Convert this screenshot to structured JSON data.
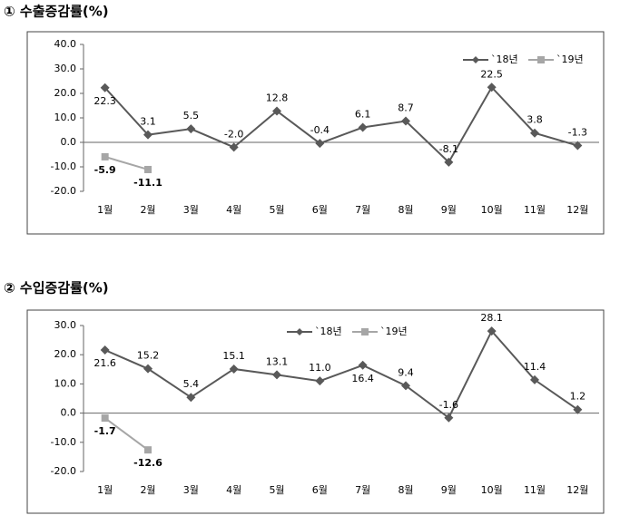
{
  "chart_data": [
    {
      "type": "line",
      "title": "① 수출증감률(%)",
      "categories": [
        "1월",
        "2월",
        "3월",
        "4월",
        "5월",
        "6월",
        "7월",
        "8월",
        "9월",
        "10월",
        "11월",
        "12월"
      ],
      "series": [
        {
          "name": "`18년",
          "color": "#595959",
          "marker": "diamond",
          "values": [
            22.3,
            3.1,
            5.5,
            -2.0,
            12.8,
            -0.4,
            6.1,
            8.7,
            -8.1,
            22.5,
            3.8,
            -1.3
          ],
          "value_labels": [
            "22.3",
            "3.1",
            "5.5",
            "-2.0",
            "12.8",
            "-0.4",
            "6.1",
            "8.7",
            "-8.1",
            "22.5",
            "3.8",
            "-1.3"
          ]
        },
        {
          "name": "`19년",
          "color": "#a6a6a6",
          "marker": "square",
          "values": [
            -5.9,
            -11.1,
            null,
            null,
            null,
            null,
            null,
            null,
            null,
            null,
            null,
            null
          ],
          "value_labels": [
            "-5.9",
            "-11.1",
            null,
            null,
            null,
            null,
            null,
            null,
            null,
            null,
            null,
            null
          ]
        }
      ],
      "ylim": [
        -20,
        40
      ],
      "yticks": [
        {
          "value": -20,
          "label": "-20.0"
        },
        {
          "value": -10,
          "label": "-10.0"
        },
        {
          "value": 0,
          "label": "0.0"
        },
        {
          "value": 10,
          "label": "10.0"
        },
        {
          "value": 20,
          "label": "20.0"
        },
        {
          "value": 30,
          "label": "30.0"
        },
        {
          "value": 40,
          "label": "40.0"
        }
      ],
      "legend": "top-right"
    },
    {
      "type": "line",
      "title": "② 수입증감률(%)",
      "categories": [
        "1월",
        "2월",
        "3월",
        "4월",
        "5월",
        "6월",
        "7월",
        "8월",
        "9월",
        "10월",
        "11월",
        "12월"
      ],
      "series": [
        {
          "name": "`18년",
          "color": "#595959",
          "marker": "diamond",
          "values": [
            21.6,
            15.2,
            5.4,
            15.1,
            13.1,
            11.0,
            16.4,
            9.4,
            -1.6,
            28.1,
            11.4,
            1.2
          ],
          "value_labels": [
            "21.6",
            "15.2",
            "5.4",
            "15.1",
            "13.1",
            "11.0",
            "16.4",
            "9.4",
            "-1.6",
            "28.1",
            "11.4",
            "1.2"
          ]
        },
        {
          "name": "`19년",
          "color": "#a6a6a6",
          "marker": "square",
          "values": [
            -1.7,
            -12.6,
            null,
            null,
            null,
            null,
            null,
            null,
            null,
            null,
            null,
            null
          ],
          "value_labels": [
            "-1.7",
            "-12.6",
            null,
            null,
            null,
            null,
            null,
            null,
            null,
            null,
            null,
            null
          ]
        }
      ],
      "ylim": [
        -20,
        30
      ],
      "yticks": [
        {
          "value": -20,
          "label": "-20.0"
        },
        {
          "value": -10,
          "label": "-10.0"
        },
        {
          "value": 0,
          "label": "0.0"
        },
        {
          "value": 10,
          "label": "10.0"
        },
        {
          "value": 20,
          "label": "20.0"
        },
        {
          "value": 30,
          "label": "30.0"
        }
      ],
      "legend": "top-center"
    }
  ]
}
